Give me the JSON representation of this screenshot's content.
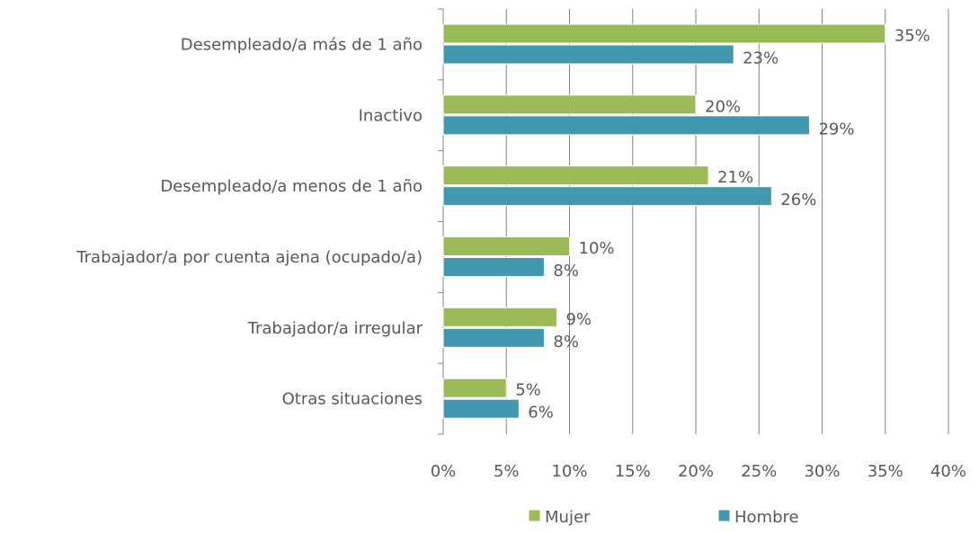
{
  "chart_data": {
    "type": "bar",
    "orientation": "horizontal",
    "categories": [
      "Desempleado/a más de 1 año",
      "Inactivo",
      "Desempleado/a menos de 1 año",
      "Trabajador/a por cuenta ajena (ocupado/a)",
      "Trabajador/a irregular",
      "Otras situaciones"
    ],
    "series": [
      {
        "name": "Mujer",
        "color": "#9bbb59",
        "values": [
          35,
          20,
          21,
          10,
          9,
          5
        ],
        "value_labels": [
          "35%",
          "20%",
          "21%",
          "10%",
          "9%",
          "5%"
        ]
      },
      {
        "name": "Hombre",
        "color": "#4198af",
        "values": [
          23,
          29,
          26,
          8,
          8,
          6
        ],
        "value_labels": [
          "23%",
          "29%",
          "26%",
          "8%",
          "8%",
          "6%"
        ]
      }
    ],
    "xlim": [
      0,
      40
    ],
    "xticks": [
      {
        "value": 0,
        "label": "0%"
      },
      {
        "value": 5,
        "label": "5%"
      },
      {
        "value": 10,
        "label": "10%"
      },
      {
        "value": 15,
        "label": "15%"
      },
      {
        "value": 20,
        "label": "20%"
      },
      {
        "value": 25,
        "label": "25%"
      },
      {
        "value": 30,
        "label": "30%"
      },
      {
        "value": 35,
        "label": "35%"
      },
      {
        "value": 40,
        "label": "40%"
      }
    ],
    "grid": true,
    "legend": "bottom"
  }
}
